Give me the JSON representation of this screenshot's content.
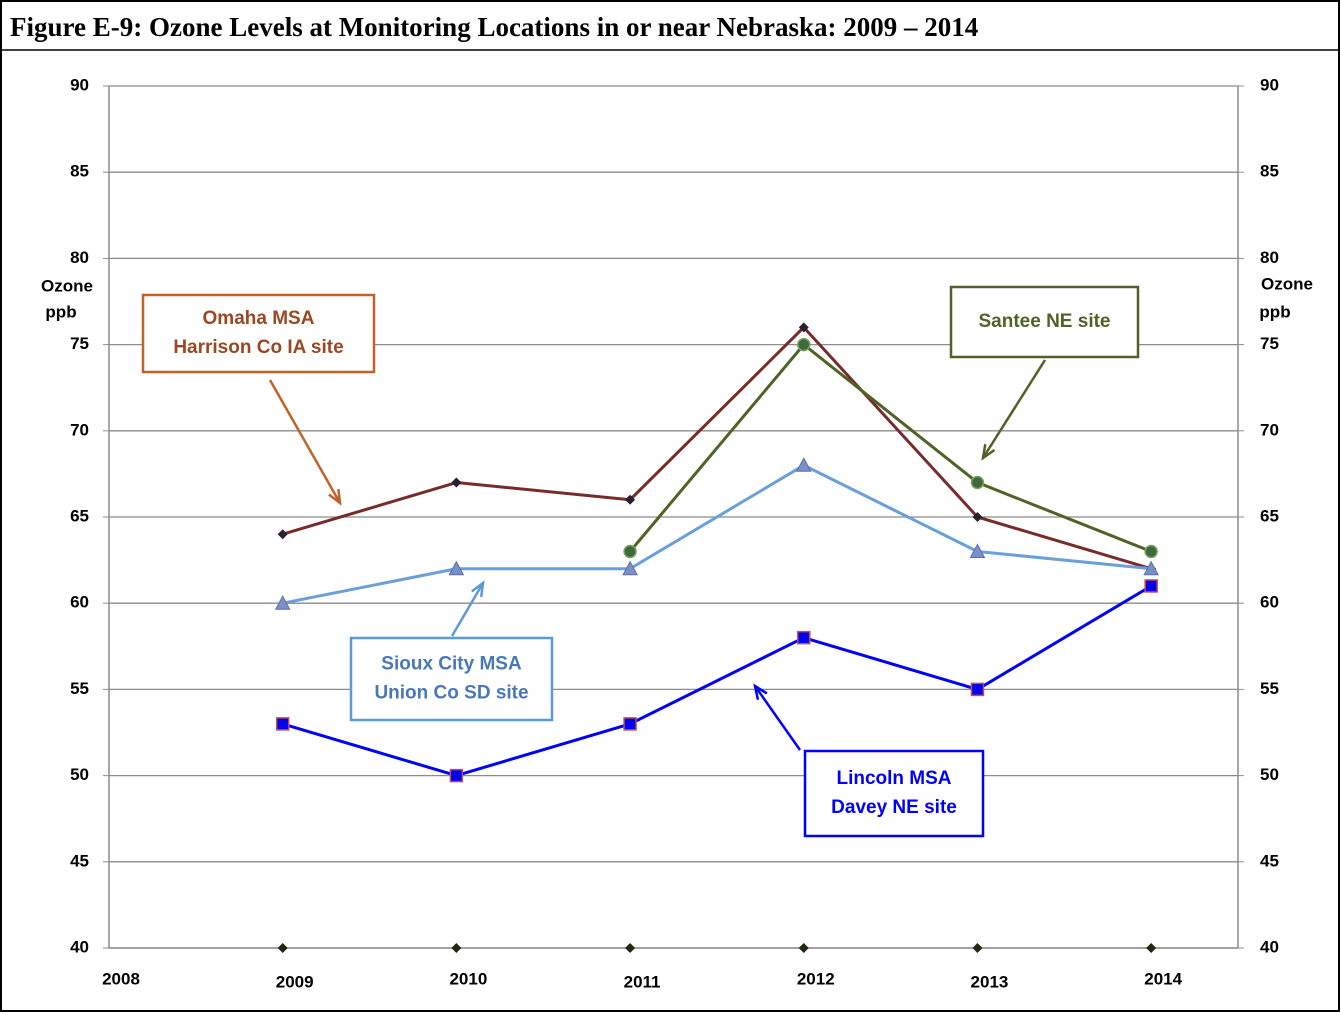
{
  "chart_data": {
    "type": "line",
    "title": "Figure E-9: Ozone Levels at Monitoring Locations in or near Nebraska: 2009 – 2014",
    "ylabel": [
      "Ozone",
      "ppb"
    ],
    "x": [
      2009,
      2010,
      2011,
      2012,
      2013,
      2014
    ],
    "xlim": [
      2008,
      2014.5
    ],
    "xticks": [
      2008,
      2009,
      2010,
      2011,
      2012,
      2013,
      2014
    ],
    "ylim": [
      40,
      90
    ],
    "yticks": [
      40,
      45,
      50,
      55,
      60,
      65,
      70,
      75,
      80,
      85,
      90
    ],
    "y2lim": [
      40,
      90
    ],
    "y2ticks": [
      40,
      45,
      50,
      55,
      60,
      65,
      70,
      75,
      80,
      85,
      90
    ],
    "grid": true,
    "series": [
      {
        "name": [
          "Omaha MSA",
          "Harrison Co IA site"
        ],
        "color": "#772c2c",
        "marker": "diamond",
        "box_color": "#c0622a",
        "text_color": "#984822",
        "values": [
          64,
          67,
          66,
          76,
          65,
          62
        ]
      },
      {
        "name": [
          "Santee NE site"
        ],
        "color": "#4f6228",
        "marker": "circle",
        "box_color": "#4f6228",
        "text_color": "#4f6228",
        "values": [
          null,
          null,
          63,
          75,
          67,
          63
        ]
      },
      {
        "name": [
          "Sioux City MSA",
          "Union Co SD site"
        ],
        "color": "#6a9fd8",
        "marker": "triangle",
        "box_color": "#5b9bd5",
        "text_color": "#4a78b5",
        "values": [
          60,
          62,
          62,
          68,
          63,
          62
        ]
      },
      {
        "name": [
          "Lincoln MSA",
          "Davey NE site"
        ],
        "color": "#0000ff",
        "marker": "square",
        "box_color": "#0000ff",
        "text_color": "#0000ff",
        "values": [
          53,
          50,
          53,
          58,
          55,
          61
        ]
      }
    ]
  }
}
